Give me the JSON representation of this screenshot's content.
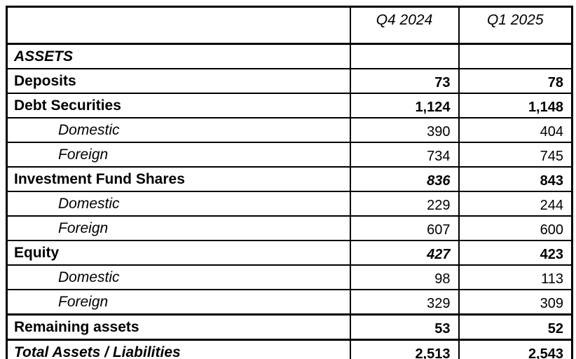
{
  "table": {
    "columns": [
      "",
      "Q4 2024",
      "Q1 2025"
    ],
    "rows": [
      {
        "label": "ASSETS",
        "style": "section",
        "q4": "",
        "q1": ""
      },
      {
        "label": "Deposits",
        "style": "category",
        "q4": "73",
        "q1": "78"
      },
      {
        "label": "Debt Securities",
        "style": "category",
        "q4": "1,124",
        "q1": "1,148"
      },
      {
        "label": "Domestic",
        "style": "sub",
        "q4": "390",
        "q1": "404"
      },
      {
        "label": "Foreign",
        "style": "sub",
        "q4": "734",
        "q1": "745"
      },
      {
        "label": "Investment Fund Shares",
        "style": "category",
        "q4": "836",
        "q1": "843",
        "q4_italic": true
      },
      {
        "label": "Domestic",
        "style": "sub",
        "q4": "229",
        "q1": "244"
      },
      {
        "label": "Foreign",
        "style": "sub",
        "q4": "607",
        "q1": "600"
      },
      {
        "label": "Equity",
        "style": "category",
        "q4": "427",
        "q1": "423",
        "q4_italic": true
      },
      {
        "label": "Domestic",
        "style": "sub",
        "q4": "98",
        "q1": "113"
      },
      {
        "label": "Foreign",
        "style": "sub",
        "q4": "329",
        "q1": "309"
      },
      {
        "label": "Remaining assets",
        "style": "category",
        "q4": "53",
        "q1": "52",
        "thick_top": true
      },
      {
        "label": "Total Assets / Liabilities",
        "style": "total",
        "q4": "2,513",
        "q1": "2,543",
        "thick_top": true
      }
    ]
  },
  "colors": {
    "border": "#000000",
    "text": "#000000",
    "background": "#ffffff"
  }
}
